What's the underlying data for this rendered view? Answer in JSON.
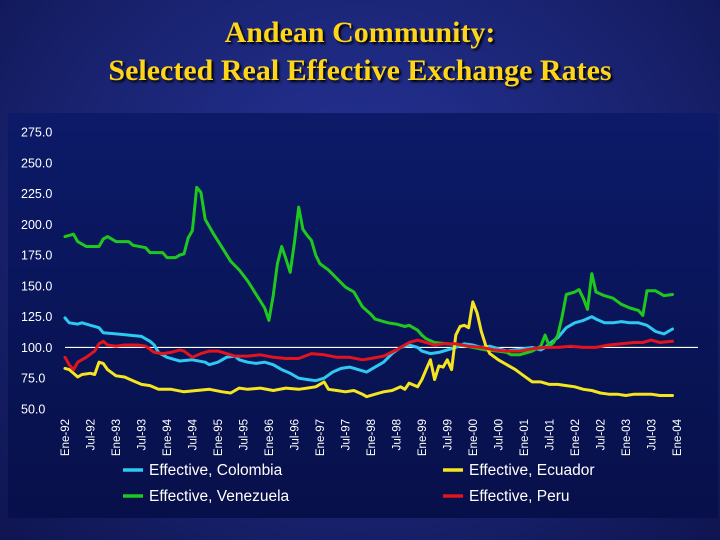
{
  "slide": {
    "title_line1": "Andean Community:",
    "title_line2": "Selected Real Effective Exchange Rates"
  },
  "chart_data": {
    "type": "line",
    "title": "",
    "xlabel": "",
    "ylabel": "",
    "ylim": [
      50,
      275
    ],
    "yticks": [
      "275.0",
      "250.0",
      "225.0",
      "200.0",
      "175.0",
      "150.0",
      "125.0",
      "100.0",
      "75.0",
      "50.0"
    ],
    "reference_line": 100,
    "x_tick_labels": [
      "Ene-92",
      "Jul-92",
      "Ene-93",
      "Jul-93",
      "Ene-94",
      "Jul-94",
      "Ene-95",
      "Jul-95",
      "Ene-96",
      "Jul-96",
      "Ene-97",
      "Jul-97",
      "Ene-98",
      "Jul-98",
      "Ene-99",
      "Jul-99",
      "Ene-00",
      "Jul-00",
      "Ene-01",
      "Jul-01",
      "Ene-02",
      "Jul-02",
      "Ene-03",
      "Jul-03",
      "Ene-04"
    ],
    "legend_position": "bottom",
    "grid": false,
    "series": [
      {
        "name": "Effective, Colombia",
        "color": "#2ec8f0",
        "points": [
          [
            0,
            124
          ],
          [
            1,
            120
          ],
          [
            3,
            119
          ],
          [
            4,
            120
          ],
          [
            6,
            118
          ],
          [
            8,
            116
          ],
          [
            9,
            112
          ],
          [
            12,
            111
          ],
          [
            15,
            110
          ],
          [
            18,
            109
          ],
          [
            20,
            105
          ],
          [
            21,
            102
          ],
          [
            22,
            96
          ],
          [
            24,
            92
          ],
          [
            27,
            89
          ],
          [
            30,
            90
          ],
          [
            33,
            88
          ],
          [
            34,
            86
          ],
          [
            36,
            88
          ],
          [
            37,
            90
          ],
          [
            38,
            92
          ],
          [
            40,
            93
          ],
          [
            41,
            90
          ],
          [
            43,
            88
          ],
          [
            45,
            87
          ],
          [
            47,
            88
          ],
          [
            49,
            86
          ],
          [
            51,
            82
          ],
          [
            53,
            79
          ],
          [
            55,
            75
          ],
          [
            57,
            74
          ],
          [
            59,
            73
          ],
          [
            61,
            75
          ],
          [
            63,
            80
          ],
          [
            65,
            83
          ],
          [
            67,
            84
          ],
          [
            69,
            82
          ],
          [
            71,
            80
          ],
          [
            73,
            84
          ],
          [
            75,
            88
          ],
          [
            77,
            95
          ],
          [
            79,
            100
          ],
          [
            81,
            102
          ],
          [
            83,
            100
          ],
          [
            84,
            97
          ],
          [
            86,
            95
          ],
          [
            88,
            96
          ],
          [
            90,
            98
          ],
          [
            92,
            100
          ],
          [
            94,
            103
          ],
          [
            96,
            102
          ],
          [
            98,
            100
          ],
          [
            100,
            101
          ],
          [
            102,
            99
          ],
          [
            104,
            97
          ],
          [
            106,
            98
          ],
          [
            108,
            99
          ],
          [
            110,
            100
          ],
          [
            112,
            98
          ],
          [
            113,
            100
          ],
          [
            114,
            103
          ],
          [
            116,
            108
          ],
          [
            118,
            116
          ],
          [
            120,
            120
          ],
          [
            122,
            122
          ],
          [
            124,
            125
          ],
          [
            125,
            123
          ],
          [
            127,
            120
          ],
          [
            129,
            120
          ],
          [
            131,
            121
          ],
          [
            133,
            120
          ],
          [
            135,
            120
          ],
          [
            137,
            118
          ],
          [
            139,
            113
          ],
          [
            141,
            111
          ],
          [
            143,
            115
          ]
        ]
      },
      {
        "name": "Effective, Venezuela",
        "color": "#1fc81f",
        "points": [
          [
            0,
            190
          ],
          [
            2,
            192
          ],
          [
            3,
            186
          ],
          [
            5,
            182
          ],
          [
            8,
            182
          ],
          [
            9,
            188
          ],
          [
            10,
            190
          ],
          [
            12,
            186
          ],
          [
            15,
            186
          ],
          [
            16,
            183
          ],
          [
            19,
            181
          ],
          [
            20,
            177
          ],
          [
            23,
            177
          ],
          [
            24,
            173
          ],
          [
            26,
            173
          ],
          [
            27,
            175
          ],
          [
            28,
            176
          ],
          [
            29,
            189
          ],
          [
            30,
            195
          ],
          [
            31,
            230
          ],
          [
            32,
            226
          ],
          [
            33,
            204
          ],
          [
            35,
            192
          ],
          [
            37,
            181
          ],
          [
            39,
            170
          ],
          [
            41,
            163
          ],
          [
            43,
            154
          ],
          [
            45,
            143
          ],
          [
            47,
            132
          ],
          [
            48,
            122
          ],
          [
            49,
            142
          ],
          [
            50,
            168
          ],
          [
            51,
            182
          ],
          [
            52,
            172
          ],
          [
            53,
            161
          ],
          [
            54,
            185
          ],
          [
            55,
            214
          ],
          [
            56,
            196
          ],
          [
            57,
            191
          ],
          [
            58,
            187
          ],
          [
            59,
            175
          ],
          [
            60,
            168
          ],
          [
            62,
            163
          ],
          [
            64,
            156
          ],
          [
            66,
            149
          ],
          [
            68,
            145
          ],
          [
            70,
            133
          ],
          [
            72,
            127
          ],
          [
            73,
            123
          ],
          [
            76,
            120
          ],
          [
            78,
            119
          ],
          [
            80,
            117
          ],
          [
            81,
            118
          ],
          [
            83,
            114
          ],
          [
            84,
            110
          ],
          [
            85,
            107
          ],
          [
            87,
            104
          ],
          [
            90,
            103
          ],
          [
            93,
            102
          ],
          [
            96,
            100
          ],
          [
            99,
            98
          ],
          [
            102,
            97
          ],
          [
            104,
            96
          ],
          [
            105,
            94
          ],
          [
            107,
            94
          ],
          [
            108,
            95
          ],
          [
            110,
            97
          ],
          [
            112,
            101
          ],
          [
            113,
            110
          ],
          [
            114,
            101
          ],
          [
            115,
            104
          ],
          [
            116,
            110
          ],
          [
            117,
            125
          ],
          [
            118,
            143
          ],
          [
            120,
            145
          ],
          [
            121,
            147
          ],
          [
            122,
            140
          ],
          [
            123,
            131
          ],
          [
            124,
            160
          ],
          [
            125,
            145
          ],
          [
            127,
            142
          ],
          [
            129,
            140
          ],
          [
            131,
            135
          ],
          [
            133,
            132
          ],
          [
            135,
            130
          ],
          [
            136,
            126
          ],
          [
            137,
            146
          ],
          [
            139,
            146
          ],
          [
            141,
            142
          ],
          [
            143,
            143
          ]
        ]
      },
      {
        "name": "Effective, Ecuador",
        "color": "#f5e51e",
        "points": [
          [
            0,
            83
          ],
          [
            1,
            82
          ],
          [
            2,
            79
          ],
          [
            3,
            76
          ],
          [
            4,
            78
          ],
          [
            6,
            79
          ],
          [
            7,
            78
          ],
          [
            8,
            88
          ],
          [
            9,
            87
          ],
          [
            10,
            82
          ],
          [
            12,
            77
          ],
          [
            14,
            76
          ],
          [
            16,
            73
          ],
          [
            18,
            70
          ],
          [
            20,
            69
          ],
          [
            22,
            66
          ],
          [
            25,
            66
          ],
          [
            28,
            64
          ],
          [
            31,
            65
          ],
          [
            34,
            66
          ],
          [
            37,
            64
          ],
          [
            39,
            63
          ],
          [
            41,
            67
          ],
          [
            43,
            66
          ],
          [
            46,
            67
          ],
          [
            49,
            65
          ],
          [
            52,
            67
          ],
          [
            55,
            66
          ],
          [
            57,
            67
          ],
          [
            59,
            68
          ],
          [
            61,
            72
          ],
          [
            62,
            66
          ],
          [
            64,
            65
          ],
          [
            66,
            64
          ],
          [
            68,
            65
          ],
          [
            70,
            62
          ],
          [
            71,
            60
          ],
          [
            73,
            62
          ],
          [
            75,
            64
          ],
          [
            77,
            65
          ],
          [
            79,
            68
          ],
          [
            80,
            66
          ],
          [
            81,
            71
          ],
          [
            83,
            68
          ],
          [
            84,
            74
          ],
          [
            85,
            82
          ],
          [
            86,
            90
          ],
          [
            87,
            74
          ],
          [
            88,
            85
          ],
          [
            89,
            84
          ],
          [
            90,
            90
          ],
          [
            91,
            82
          ],
          [
            92,
            110
          ],
          [
            93,
            117
          ],
          [
            94,
            118
          ],
          [
            95,
            116
          ],
          [
            96,
            137
          ],
          [
            97,
            128
          ],
          [
            98,
            113
          ],
          [
            99,
            102
          ],
          [
            100,
            95
          ],
          [
            102,
            90
          ],
          [
            104,
            86
          ],
          [
            106,
            82
          ],
          [
            108,
            77
          ],
          [
            110,
            72
          ],
          [
            112,
            72
          ],
          [
            114,
            70
          ],
          [
            116,
            70
          ],
          [
            118,
            69
          ],
          [
            120,
            68
          ],
          [
            122,
            66
          ],
          [
            124,
            65
          ],
          [
            126,
            63
          ],
          [
            128,
            62
          ],
          [
            130,
            62
          ],
          [
            132,
            61
          ],
          [
            134,
            62
          ],
          [
            136,
            62
          ],
          [
            138,
            62
          ],
          [
            140,
            61
          ],
          [
            143,
            61
          ]
        ]
      },
      {
        "name": "Effective, Peru",
        "color": "#e2141e",
        "points": [
          [
            0,
            92
          ],
          [
            1,
            86
          ],
          [
            2,
            82
          ],
          [
            3,
            88
          ],
          [
            5,
            92
          ],
          [
            7,
            97
          ],
          [
            8,
            103
          ],
          [
            9,
            105
          ],
          [
            10,
            102
          ],
          [
            12,
            101
          ],
          [
            14,
            102
          ],
          [
            17,
            102
          ],
          [
            19,
            101
          ],
          [
            21,
            96
          ],
          [
            23,
            95
          ],
          [
            25,
            96
          ],
          [
            27,
            98
          ],
          [
            28,
            97
          ],
          [
            30,
            92
          ],
          [
            32,
            95
          ],
          [
            34,
            97
          ],
          [
            36,
            97
          ],
          [
            38,
            95
          ],
          [
            40,
            93
          ],
          [
            43,
            93
          ],
          [
            46,
            94
          ],
          [
            49,
            92
          ],
          [
            52,
            91
          ],
          [
            55,
            91
          ],
          [
            58,
            95
          ],
          [
            61,
            94
          ],
          [
            64,
            92
          ],
          [
            67,
            92
          ],
          [
            70,
            90
          ],
          [
            72,
            91
          ],
          [
            75,
            93
          ],
          [
            78,
            98
          ],
          [
            81,
            104
          ],
          [
            83,
            106
          ],
          [
            85,
            104
          ],
          [
            87,
            102
          ],
          [
            89,
            103
          ],
          [
            92,
            103
          ],
          [
            95,
            101
          ],
          [
            98,
            100
          ],
          [
            101,
            98
          ],
          [
            104,
            97
          ],
          [
            107,
            97
          ],
          [
            110,
            99
          ],
          [
            113,
            100
          ],
          [
            116,
            100
          ],
          [
            119,
            101
          ],
          [
            122,
            100
          ],
          [
            125,
            100
          ],
          [
            128,
            102
          ],
          [
            131,
            103
          ],
          [
            134,
            104
          ],
          [
            136,
            104
          ],
          [
            138,
            106
          ],
          [
            140,
            104
          ],
          [
            143,
            105
          ]
        ]
      }
    ]
  }
}
